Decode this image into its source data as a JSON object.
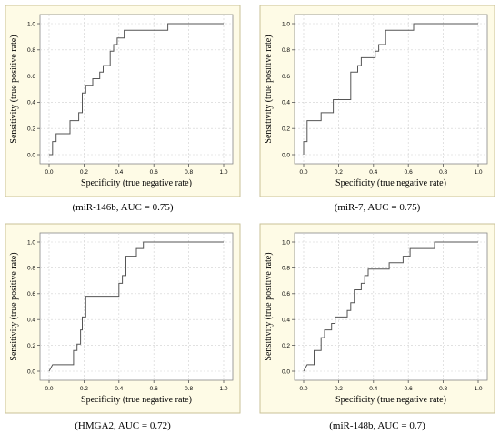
{
  "chart_data": [
    {
      "type": "line",
      "caption": "(miR-146b, AUC = 0.75)",
      "xlabel": "Specificity (true negative rate)",
      "ylabel": "Sensitivity (true positive rate)",
      "xlim": [
        0,
        1
      ],
      "ylim": [
        0,
        1
      ],
      "xticks": [
        "0.0",
        "0.2",
        "0.4",
        "0.6",
        "0.8",
        "1.0"
      ],
      "yticks": [
        "0.0",
        "0.2",
        "0.4",
        "0.6",
        "0.8",
        "1.0"
      ],
      "grid": true,
      "series": [
        {
          "points": [
            [
              0,
              0
            ],
            [
              0.02,
              0
            ],
            [
              0.02,
              0.1
            ],
            [
              0.04,
              0.1
            ],
            [
              0.04,
              0.16
            ],
            [
              0.12,
              0.16
            ],
            [
              0.12,
              0.26
            ],
            [
              0.17,
              0.26
            ],
            [
              0.17,
              0.32
            ],
            [
              0.19,
              0.32
            ],
            [
              0.19,
              0.47
            ],
            [
              0.21,
              0.47
            ],
            [
              0.21,
              0.53
            ],
            [
              0.25,
              0.53
            ],
            [
              0.25,
              0.58
            ],
            [
              0.29,
              0.58
            ],
            [
              0.29,
              0.63
            ],
            [
              0.31,
              0.63
            ],
            [
              0.31,
              0.68
            ],
            [
              0.35,
              0.68
            ],
            [
              0.35,
              0.79
            ],
            [
              0.37,
              0.79
            ],
            [
              0.37,
              0.84
            ],
            [
              0.39,
              0.84
            ],
            [
              0.39,
              0.89
            ],
            [
              0.43,
              0.89
            ],
            [
              0.43,
              0.95
            ],
            [
              0.68,
              0.95
            ],
            [
              0.68,
              1.0
            ],
            [
              1.0,
              1.0
            ]
          ]
        }
      ]
    },
    {
      "type": "line",
      "caption": "(miR-7, AUC = 0.75)",
      "xlabel": "Specificity (true negative rate)",
      "ylabel": "Sensitivity (true positive rate)",
      "xlim": [
        0,
        1
      ],
      "ylim": [
        0,
        1
      ],
      "xticks": [
        "0.0",
        "0.2",
        "0.4",
        "0.6",
        "0.8",
        "1.0"
      ],
      "yticks": [
        "0.0",
        "0.2",
        "0.4",
        "0.6",
        "0.8",
        "1.0"
      ],
      "grid": true,
      "series": [
        {
          "points": [
            [
              0,
              0
            ],
            [
              0,
              0.1
            ],
            [
              0.02,
              0.1
            ],
            [
              0.02,
              0.26
            ],
            [
              0.1,
              0.26
            ],
            [
              0.1,
              0.32
            ],
            [
              0.17,
              0.32
            ],
            [
              0.17,
              0.42
            ],
            [
              0.27,
              0.42
            ],
            [
              0.27,
              0.63
            ],
            [
              0.31,
              0.63
            ],
            [
              0.31,
              0.68
            ],
            [
              0.33,
              0.68
            ],
            [
              0.33,
              0.74
            ],
            [
              0.41,
              0.74
            ],
            [
              0.41,
              0.79
            ],
            [
              0.43,
              0.79
            ],
            [
              0.43,
              0.84
            ],
            [
              0.47,
              0.84
            ],
            [
              0.47,
              0.95
            ],
            [
              0.63,
              0.95
            ],
            [
              0.63,
              1.0
            ],
            [
              1.0,
              1.0
            ]
          ]
        }
      ]
    },
    {
      "type": "line",
      "caption": "(HMGA2, AUC = 0.72)",
      "xlabel": "Specificity (true negative rate)",
      "ylabel": "Sensitivity (true positive rate)",
      "xlim": [
        0,
        1
      ],
      "ylim": [
        0,
        1
      ],
      "xticks": [
        "0.0",
        "0.2",
        "0.4",
        "0.6",
        "0.8",
        "1.0"
      ],
      "yticks": [
        "0.0",
        "0.2",
        "0.4",
        "0.6",
        "0.8",
        "1.0"
      ],
      "grid": true,
      "series": [
        {
          "points": [
            [
              0,
              0
            ],
            [
              0.02,
              0.05
            ],
            [
              0.14,
              0.05
            ],
            [
              0.14,
              0.16
            ],
            [
              0.16,
              0.16
            ],
            [
              0.16,
              0.21
            ],
            [
              0.18,
              0.21
            ],
            [
              0.18,
              0.32
            ],
            [
              0.19,
              0.32
            ],
            [
              0.19,
              0.42
            ],
            [
              0.21,
              0.42
            ],
            [
              0.21,
              0.58
            ],
            [
              0.4,
              0.58
            ],
            [
              0.4,
              0.68
            ],
            [
              0.42,
              0.68
            ],
            [
              0.42,
              0.74
            ],
            [
              0.44,
              0.74
            ],
            [
              0.44,
              0.89
            ],
            [
              0.5,
              0.89
            ],
            [
              0.5,
              0.95
            ],
            [
              0.54,
              0.95
            ],
            [
              0.54,
              1.0
            ],
            [
              1.0,
              1.0
            ]
          ]
        }
      ]
    },
    {
      "type": "line",
      "caption": "(miR-148b, AUC = 0.7)",
      "xlabel": "Specificity (true negative rate)",
      "ylabel": "Sensitivity (true positive rate)",
      "xlim": [
        0,
        1
      ],
      "ylim": [
        0,
        1
      ],
      "xticks": [
        "0.0",
        "0.2",
        "0.4",
        "0.6",
        "0.8",
        "1.0"
      ],
      "yticks": [
        "0.0",
        "0.2",
        "0.4",
        "0.6",
        "0.8",
        "1.0"
      ],
      "grid": true,
      "series": [
        {
          "points": [
            [
              0,
              0
            ],
            [
              0.02,
              0.05
            ],
            [
              0.06,
              0.05
            ],
            [
              0.06,
              0.16
            ],
            [
              0.1,
              0.16
            ],
            [
              0.1,
              0.26
            ],
            [
              0.12,
              0.26
            ],
            [
              0.12,
              0.32
            ],
            [
              0.16,
              0.32
            ],
            [
              0.16,
              0.37
            ],
            [
              0.18,
              0.37
            ],
            [
              0.18,
              0.42
            ],
            [
              0.25,
              0.42
            ],
            [
              0.25,
              0.47
            ],
            [
              0.27,
              0.47
            ],
            [
              0.27,
              0.53
            ],
            [
              0.29,
              0.53
            ],
            [
              0.29,
              0.63
            ],
            [
              0.33,
              0.63
            ],
            [
              0.33,
              0.68
            ],
            [
              0.35,
              0.68
            ],
            [
              0.35,
              0.74
            ],
            [
              0.37,
              0.74
            ],
            [
              0.37,
              0.79
            ],
            [
              0.49,
              0.79
            ],
            [
              0.49,
              0.84
            ],
            [
              0.57,
              0.84
            ],
            [
              0.57,
              0.89
            ],
            [
              0.61,
              0.89
            ],
            [
              0.61,
              0.95
            ],
            [
              0.75,
              0.95
            ],
            [
              0.75,
              1.0
            ],
            [
              1.0,
              1.0
            ]
          ]
        }
      ]
    }
  ],
  "style": {
    "frame_fill": "#fefbe6",
    "frame_border": "#c9c297",
    "grid_color": "#d0d0d0",
    "line_color": "#555555"
  }
}
